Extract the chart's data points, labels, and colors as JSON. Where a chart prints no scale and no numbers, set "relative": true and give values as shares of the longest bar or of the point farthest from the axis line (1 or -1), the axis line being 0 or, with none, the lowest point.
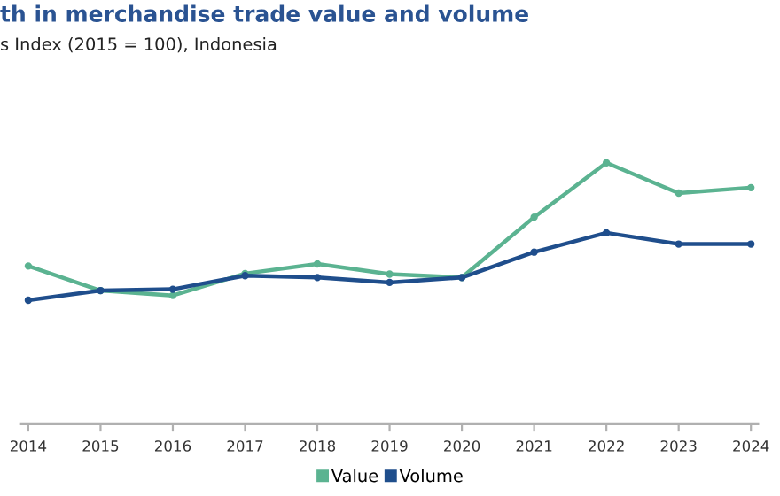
{
  "chart_data": {
    "type": "line",
    "title": "th in merchandise trade value and volume",
    "subtitle": "s Index (2015 = 100), Indonesia",
    "categories": [
      "2014",
      "2015",
      "2016",
      "2017",
      "2018",
      "2019",
      "2020",
      "2021",
      "2022",
      "2023",
      "2024"
    ],
    "relative": true,
    "series": [
      {
        "name": "Value",
        "color": "#5bb391",
        "values": [
          0.605,
          0.511,
          0.492,
          0.576,
          0.613,
          0.574,
          0.561,
          0.792,
          1,
          0.884,
          0.905
        ]
      },
      {
        "name": "Volume",
        "color": "#1f4e8c",
        "values": [
          0.474,
          0.511,
          0.516,
          0.568,
          0.561,
          0.542,
          0.561,
          0.658,
          0.732,
          0.689,
          0.689
        ]
      }
    ],
    "marker": "circle",
    "line_style": "solid",
    "legend": "bottom"
  }
}
